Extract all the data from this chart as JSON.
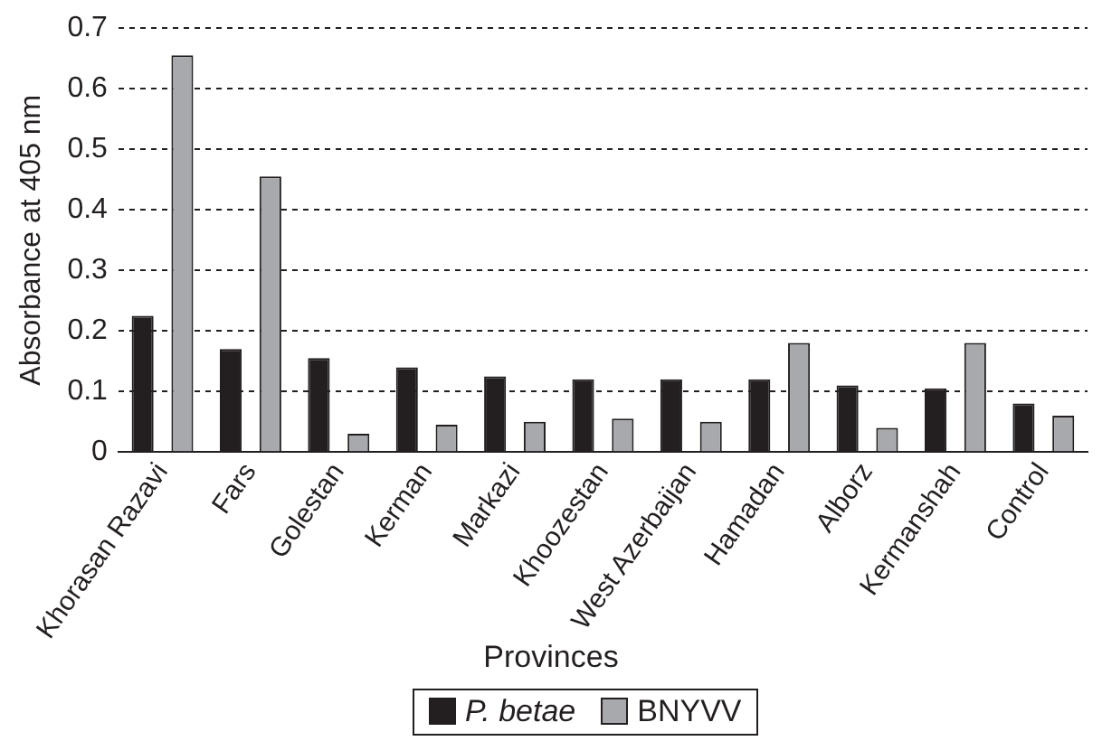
{
  "chart_data": {
    "type": "bar",
    "xlabel": "Provinces",
    "ylabel": "Absorbance at 405 nm",
    "categories": [
      "Khorasan Razavi",
      "Fars",
      "Golestan",
      "Kerman",
      "Markazi",
      "Khoozestan",
      "West Azerbaijan",
      "Hamadan",
      "Alborz",
      "Kermanshah",
      "Control"
    ],
    "series": [
      {
        "name": "P. betae",
        "color": "#231f20",
        "values": [
          0.225,
          0.17,
          0.155,
          0.14,
          0.125,
          0.12,
          0.12,
          0.12,
          0.11,
          0.105,
          0.08
        ]
      },
      {
        "name": "BNYVV",
        "color": "#a7a9ac",
        "values": [
          0.655,
          0.455,
          0.03,
          0.045,
          0.05,
          0.055,
          0.05,
          0.18,
          0.04,
          0.18,
          0.06
        ]
      }
    ],
    "ylim": [
      0,
      0.7
    ],
    "yticks": [
      {
        "value": 0,
        "label": "0"
      },
      0.1,
      0.2,
      0.3,
      0.4,
      0.5,
      0.6,
      0.7
    ],
    "grid": "y",
    "legend": "bottom"
  }
}
